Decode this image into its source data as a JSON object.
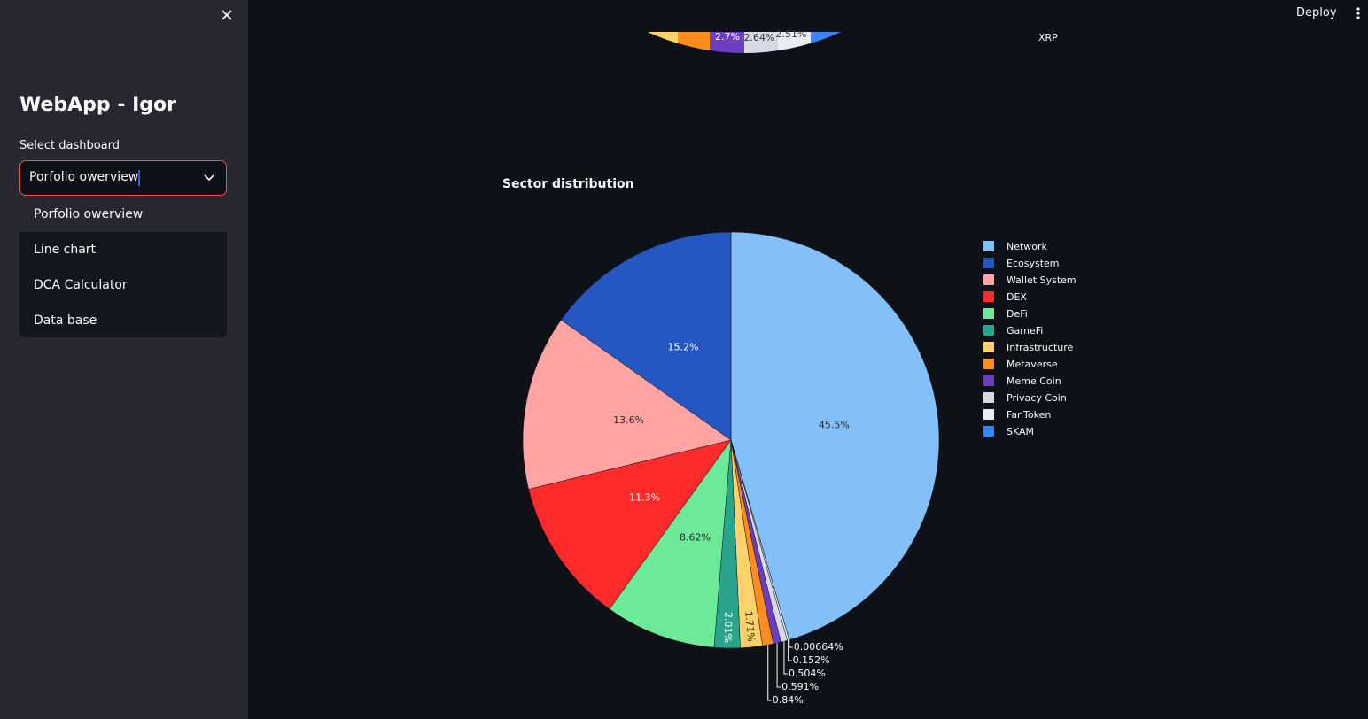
{
  "sidebar": {
    "title": "WebApp - Igor",
    "select_label": "Select dashboard",
    "select_value": "Porfolio owerview",
    "options": [
      "Porfolio owerview",
      "Line chart",
      "DCA Calculator",
      "Data base"
    ]
  },
  "header": {
    "deploy": "Deploy"
  },
  "top_fragment": {
    "labels": [
      "2.7%",
      "2.64%",
      "2.51%"
    ],
    "legend": [
      "XRP"
    ]
  },
  "chart_data": {
    "type": "pie",
    "title": "Sector distribution",
    "categories": [
      "Network",
      "Ecosystem",
      "Wallet System",
      "DEX",
      "DeFi",
      "GameFi",
      "Infrastructure",
      "Metaverse",
      "Meme Coin",
      "Privacy Coin",
      "FanToken",
      "SKAM"
    ],
    "values": [
      45.5,
      15.2,
      13.6,
      11.3,
      8.62,
      2.01,
      1.71,
      0.84,
      0.591,
      0.504,
      0.152,
      0.00664
    ],
    "value_labels": [
      "45.5%",
      "15.2%",
      "13.6%",
      "11.3%",
      "8.62%",
      "2.01%",
      "1.71%",
      "0.84%",
      "0.591%",
      "0.504%",
      "0.152%",
      "0.00664%"
    ],
    "colors": [
      "#83c0fa",
      "#2656c2",
      "#ffa3a3",
      "#ff2b2b",
      "#6cea97",
      "#2aa58d",
      "#ffd16a",
      "#ff8c1f",
      "#6d3fc0",
      "#d5dae5",
      "#e8eef8",
      "#3a84f5"
    ]
  }
}
